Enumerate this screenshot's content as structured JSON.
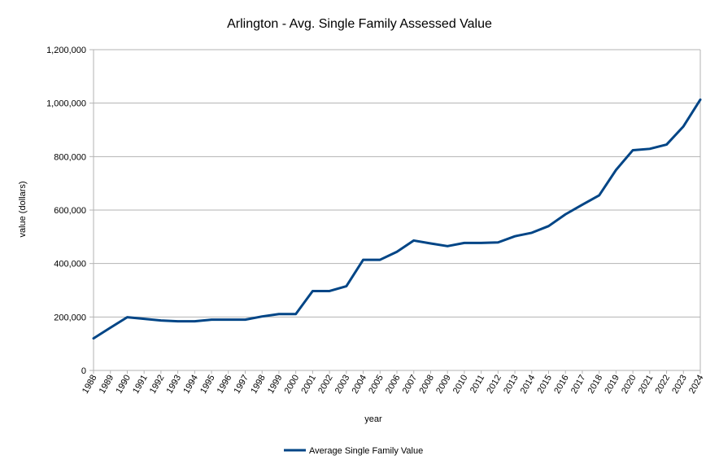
{
  "chart_data": {
    "type": "line",
    "title": "Arlington - Avg. Single Family Assessed Value",
    "xlabel": "year",
    "ylabel": "value (dollars)",
    "ylim": [
      0,
      1200000
    ],
    "yticks": [
      0,
      200000,
      400000,
      600000,
      800000,
      1000000,
      1200000
    ],
    "ytick_labels": [
      "0",
      "200,000",
      "400,000",
      "600,000",
      "800,000",
      "1,000,000",
      "1,200,000"
    ],
    "grid": true,
    "legend_position": "bottom",
    "x": [
      "1988",
      "1989",
      "1990",
      "1991",
      "1992",
      "1993",
      "1994",
      "1995",
      "1996",
      "1997",
      "1998",
      "1999",
      "2000",
      "2001",
      "2002",
      "2003",
      "2004",
      "2005",
      "2006",
      "2007",
      "2008",
      "2009",
      "2010",
      "2011",
      "2012",
      "2013",
      "2014",
      "2015",
      "2016",
      "2017",
      "2018",
      "2019",
      "2020",
      "2021",
      "2022",
      "2023",
      "2024"
    ],
    "series": [
      {
        "name": "Average Single Family Value",
        "color": "#004586",
        "values": [
          120000,
          160000,
          199000,
          193000,
          187000,
          184000,
          184000,
          190000,
          190000,
          190000,
          202000,
          211000,
          211000,
          297000,
          297000,
          315000,
          414000,
          414000,
          444000,
          486000,
          475000,
          465000,
          477000,
          477000,
          479000,
          502000,
          515000,
          540000,
          584000,
          620000,
          655000,
          750000,
          824000,
          829000,
          845000,
          913000,
          1013000
        ]
      }
    ]
  }
}
